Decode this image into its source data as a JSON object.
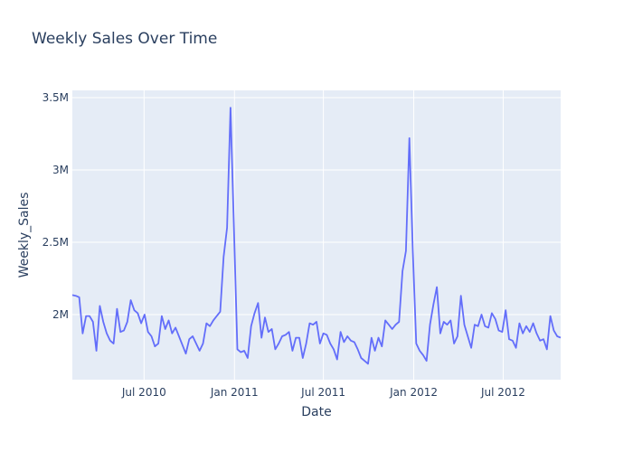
{
  "chart_data": {
    "type": "line",
    "title": "Weekly Sales Over Time",
    "xlabel": "Date",
    "ylabel": "Weekly_Sales",
    "x_start": "2010-02-05",
    "x_step_days": 7,
    "ylim": [
      1550000,
      3550000
    ],
    "xlim": [
      "2010-02-05",
      "2012-10-26"
    ],
    "x_ticks": [
      {
        "date": "2010-07-01",
        "label": "Jul 2010"
      },
      {
        "date": "2011-01-01",
        "label": "Jan 2011"
      },
      {
        "date": "2011-07-01",
        "label": "Jul 2011"
      },
      {
        "date": "2012-01-01",
        "label": "Jan 2012"
      },
      {
        "date": "2012-07-01",
        "label": "Jul 2012"
      }
    ],
    "y_ticks": [
      {
        "value": 2000000,
        "label": "2M"
      },
      {
        "value": 2500000,
        "label": "2.5M"
      },
      {
        "value": 3000000,
        "label": "3M"
      },
      {
        "value": 3500000,
        "label": "3.5M"
      }
    ],
    "grid": true,
    "series": [
      {
        "color": "#636efa",
        "values": [
          2135000,
          2130000,
          2120000,
          1870000,
          1990000,
          1990000,
          1950000,
          1750000,
          2060000,
          1950000,
          1870000,
          1820000,
          1800000,
          2040000,
          1880000,
          1890000,
          1950000,
          2100000,
          2030000,
          2010000,
          1940000,
          2000000,
          1880000,
          1850000,
          1780000,
          1800000,
          1990000,
          1900000,
          1960000,
          1870000,
          1910000,
          1850000,
          1790000,
          1730000,
          1830000,
          1850000,
          1800000,
          1750000,
          1800000,
          1940000,
          1920000,
          1960000,
          1990000,
          2020000,
          2400000,
          2600000,
          3430000,
          2600000,
          1760000,
          1740000,
          1750000,
          1700000,
          1920000,
          2010000,
          2080000,
          1840000,
          1980000,
          1880000,
          1900000,
          1760000,
          1800000,
          1850000,
          1860000,
          1880000,
          1750000,
          1840000,
          1840000,
          1700000,
          1800000,
          1940000,
          1930000,
          1950000,
          1800000,
          1870000,
          1860000,
          1800000,
          1760000,
          1690000,
          1880000,
          1810000,
          1850000,
          1820000,
          1810000,
          1760000,
          1700000,
          1680000,
          1660000,
          1840000,
          1750000,
          1840000,
          1780000,
          1960000,
          1930000,
          1900000,
          1930000,
          1950000,
          2300000,
          2440000,
          3220000,
          2440000,
          1800000,
          1750000,
          1720000,
          1680000,
          1930000,
          2070000,
          2190000,
          1870000,
          1950000,
          1930000,
          1960000,
          1800000,
          1850000,
          2130000,
          1930000,
          1850000,
          1770000,
          1930000,
          1920000,
          2000000,
          1920000,
          1910000,
          2010000,
          1970000,
          1890000,
          1880000,
          2030000,
          1830000,
          1820000,
          1770000,
          1940000,
          1870000,
          1920000,
          1880000,
          1940000,
          1870000,
          1820000,
          1830000,
          1760000,
          1990000,
          1890000,
          1850000,
          1840000
        ]
      }
    ]
  }
}
